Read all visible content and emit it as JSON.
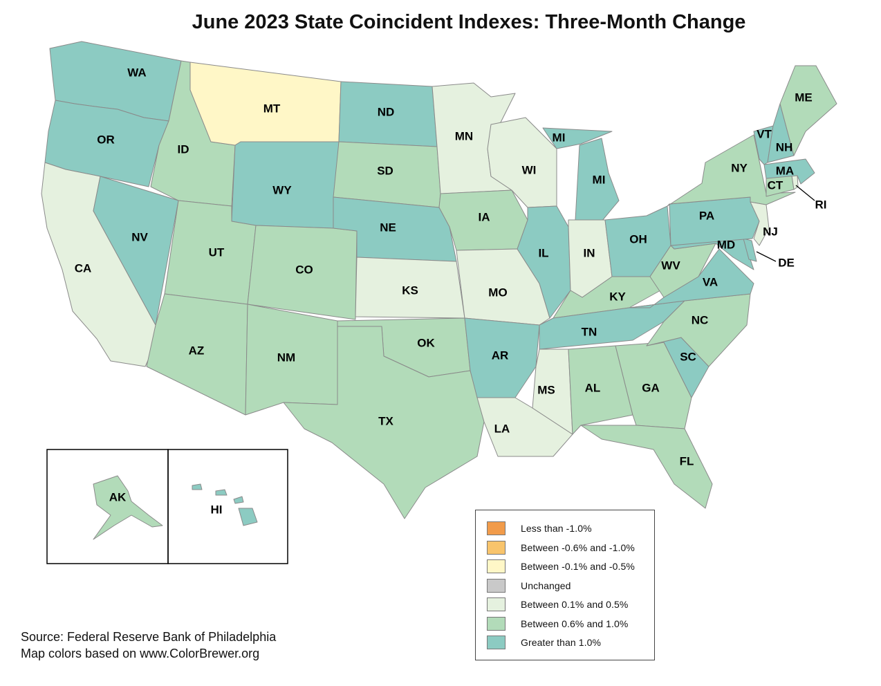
{
  "title": "June 2023 State Coincident Indexes: Three-Month Change",
  "legend": [
    {
      "label": "Less than -1.0%",
      "color": "#f19b4a"
    },
    {
      "label": "Between -0.6% and -1.0%",
      "color": "#f8c46c"
    },
    {
      "label": "Between -0.1% and -0.5%",
      "color": "#fff7c7"
    },
    {
      "label": "Unchanged",
      "color": "#c9c9c9"
    },
    {
      "label": "Between 0.1% and 0.5%",
      "color": "#e5f1df"
    },
    {
      "label": "Between 0.6% and 1.0%",
      "color": "#b2dbb9"
    },
    {
      "label": "Greater than 1.0%",
      "color": "#8ccbc2"
    }
  ],
  "source": {
    "line1": "Source: Federal Reserve Bank of Philadelphia",
    "line2": "Map colors based on www.ColorBrewer.org"
  },
  "states": [
    {
      "abbr": "WA",
      "category": "Greater than 1.0%"
    },
    {
      "abbr": "OR",
      "category": "Greater than 1.0%"
    },
    {
      "abbr": "CA",
      "category": "Between 0.1% and 0.5%"
    },
    {
      "abbr": "ID",
      "category": "Between 0.6% and 1.0%"
    },
    {
      "abbr": "NV",
      "category": "Greater than 1.0%"
    },
    {
      "abbr": "MT",
      "category": "Between -0.1% and -0.5%"
    },
    {
      "abbr": "WY",
      "category": "Greater than 1.0%"
    },
    {
      "abbr": "UT",
      "category": "Between 0.6% and 1.0%"
    },
    {
      "abbr": "CO",
      "category": "Between 0.6% and 1.0%"
    },
    {
      "abbr": "AZ",
      "category": "Between 0.6% and 1.0%"
    },
    {
      "abbr": "NM",
      "category": "Between 0.6% and 1.0%"
    },
    {
      "abbr": "ND",
      "category": "Greater than 1.0%"
    },
    {
      "abbr": "SD",
      "category": "Between 0.6% and 1.0%"
    },
    {
      "abbr": "NE",
      "category": "Greater than 1.0%"
    },
    {
      "abbr": "KS",
      "category": "Between 0.1% and 0.5%"
    },
    {
      "abbr": "OK",
      "category": "Between 0.6% and 1.0%"
    },
    {
      "abbr": "TX",
      "category": "Between 0.6% and 1.0%"
    },
    {
      "abbr": "MN",
      "category": "Between 0.1% and 0.5%"
    },
    {
      "abbr": "IA",
      "category": "Between 0.6% and 1.0%"
    },
    {
      "abbr": "MO",
      "category": "Between 0.1% and 0.5%"
    },
    {
      "abbr": "AR",
      "category": "Greater than 1.0%"
    },
    {
      "abbr": "LA",
      "category": "Between 0.1% and 0.5%"
    },
    {
      "abbr": "WI",
      "category": "Between 0.1% and 0.5%"
    },
    {
      "abbr": "IL",
      "category": "Greater than 1.0%"
    },
    {
      "abbr": "MI",
      "category": "Greater than 1.0%"
    },
    {
      "abbr": "IN",
      "category": "Between 0.1% and 0.5%"
    },
    {
      "abbr": "OH",
      "category": "Greater than 1.0%"
    },
    {
      "abbr": "KY",
      "category": "Between 0.6% and 1.0%"
    },
    {
      "abbr": "TN",
      "category": "Greater than 1.0%"
    },
    {
      "abbr": "MS",
      "category": "Between 0.1% and 0.5%"
    },
    {
      "abbr": "AL",
      "category": "Between 0.6% and 1.0%"
    },
    {
      "abbr": "GA",
      "category": "Between 0.6% and 1.0%"
    },
    {
      "abbr": "FL",
      "category": "Between 0.6% and 1.0%"
    },
    {
      "abbr": "SC",
      "category": "Greater than 1.0%"
    },
    {
      "abbr": "NC",
      "category": "Between 0.6% and 1.0%"
    },
    {
      "abbr": "VA",
      "category": "Greater than 1.0%"
    },
    {
      "abbr": "WV",
      "category": "Between 0.6% and 1.0%"
    },
    {
      "abbr": "MD",
      "category": "Greater than 1.0%"
    },
    {
      "abbr": "DE",
      "category": "Greater than 1.0%"
    },
    {
      "abbr": "PA",
      "category": "Greater than 1.0%"
    },
    {
      "abbr": "NJ",
      "category": "Between 0.1% and 0.5%"
    },
    {
      "abbr": "NY",
      "category": "Between 0.6% and 1.0%"
    },
    {
      "abbr": "CT",
      "category": "Between 0.6% and 1.0%"
    },
    {
      "abbr": "RI",
      "category": "Between 0.1% and 0.5%"
    },
    {
      "abbr": "MA",
      "category": "Greater than 1.0%"
    },
    {
      "abbr": "VT",
      "category": "Greater than 1.0%"
    },
    {
      "abbr": "NH",
      "category": "Greater than 1.0%"
    },
    {
      "abbr": "ME",
      "category": "Between 0.6% and 1.0%"
    },
    {
      "abbr": "AK",
      "category": "Between 0.6% and 1.0%"
    },
    {
      "abbr": "HI",
      "category": "Greater than 1.0%"
    }
  ]
}
